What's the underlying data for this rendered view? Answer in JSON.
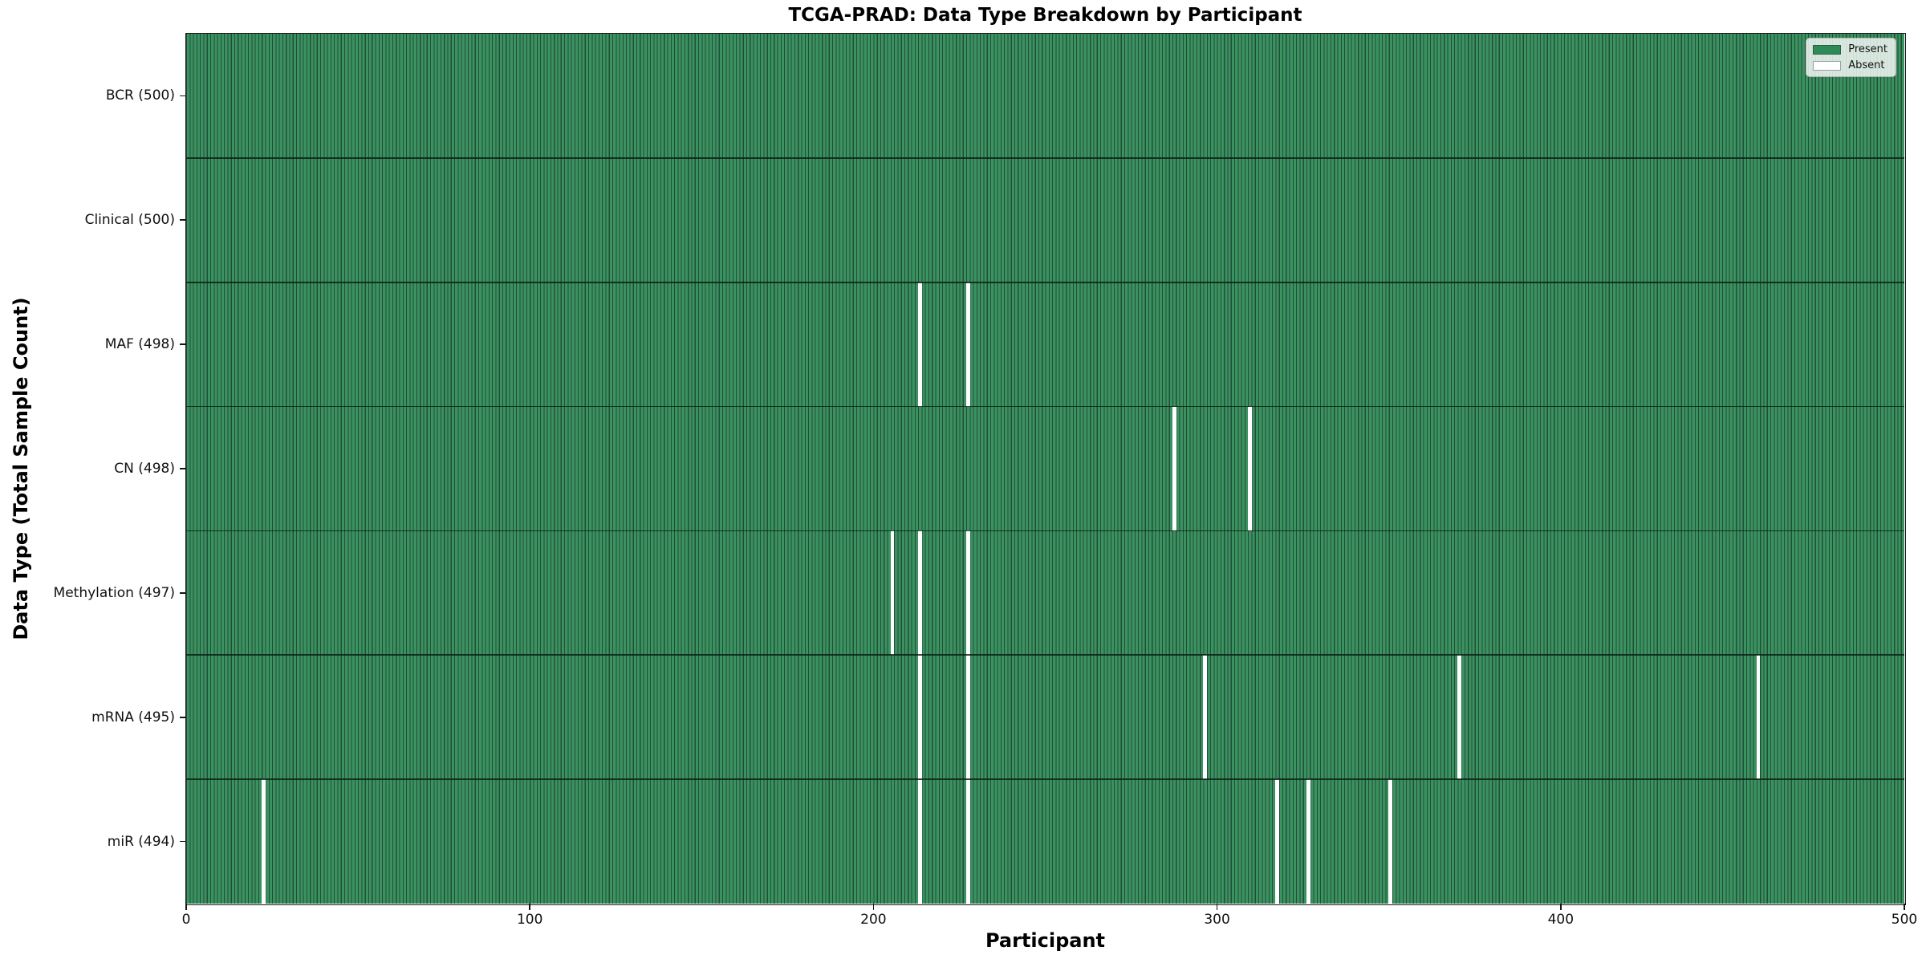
{
  "chart_data": {
    "type": "heatmap",
    "title": "TCGA-PRAD: Data Type Breakdown by Participant",
    "xlabel": "Participant",
    "ylabel": "Data Type (Total Sample Count)",
    "x_ticks": [
      0,
      100,
      200,
      300,
      400,
      500
    ],
    "x_range": [
      0,
      500
    ],
    "participants_total": 500,
    "grid": false,
    "legend": {
      "position": "upper right",
      "entries": [
        {
          "label": "Present",
          "color": "#2E8B57"
        },
        {
          "label": "Absent",
          "color": "#FFFFFF"
        }
      ]
    },
    "rows": [
      {
        "label": "BCR (500)",
        "data_type": "BCR",
        "total": 500,
        "absent_participants": []
      },
      {
        "label": "Clinical (500)",
        "data_type": "Clinical",
        "total": 500,
        "absent_participants": []
      },
      {
        "label": "MAF (498)",
        "data_type": "MAF",
        "total": 498,
        "absent_participants": [
          213,
          227
        ]
      },
      {
        "label": "CN (498)",
        "data_type": "CN",
        "total": 498,
        "absent_participants": [
          287,
          309
        ]
      },
      {
        "label": "Methylation (497)",
        "data_type": "Methylation",
        "total": 497,
        "absent_participants": [
          205,
          213,
          227
        ]
      },
      {
        "label": "mRNA (495)",
        "data_type": "mRNA",
        "total": 495,
        "absent_participants": [
          213,
          227,
          296,
          370,
          457
        ]
      },
      {
        "label": "miR (494)",
        "data_type": "miR",
        "total": 494,
        "absent_participants": [
          22,
          213,
          227,
          317,
          326,
          350
        ]
      }
    ],
    "colors": {
      "present_fill": "#3B9261",
      "bar_edge": "#224D37",
      "absent": "#FFFFFF",
      "legend_present": "#2E8B57"
    }
  }
}
